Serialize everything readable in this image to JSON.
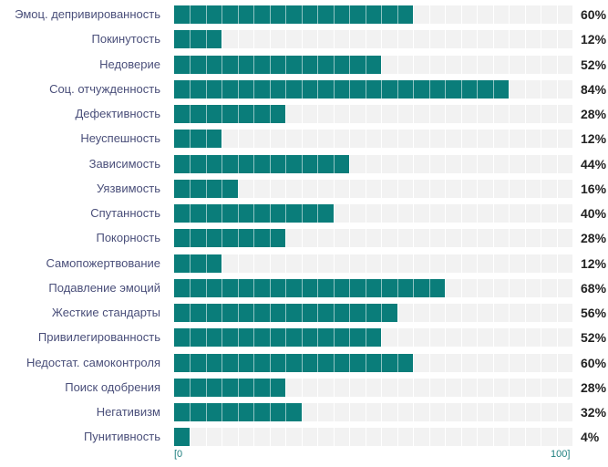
{
  "chart_data": {
    "type": "bar",
    "orientation": "horizontal",
    "categories": [
      "Эмоц. депривированность",
      "Покинутость",
      "Недоверие",
      "Соц. отчужденность",
      "Дефективность",
      "Неуспешность",
      "Зависимость",
      "Уязвимость",
      "Спутанность",
      "Покорность",
      "Самопожертвование",
      "Подавление эмоций",
      "Жесткие стандарты",
      "Привилегированность",
      "Недостат. самоконтроля",
      "Поиск одобрения",
      "Негативизм",
      "Пунитивность"
    ],
    "values": [
      60,
      12,
      52,
      84,
      28,
      12,
      44,
      16,
      40,
      28,
      12,
      68,
      56,
      52,
      60,
      28,
      32,
      4
    ],
    "value_labels": [
      "60%",
      "12%",
      "52%",
      "84%",
      "28%",
      "12%",
      "44%",
      "16%",
      "40%",
      "28%",
      "12%",
      "68%",
      "56%",
      "52%",
      "60%",
      "28%",
      "32%",
      "4%"
    ],
    "xlim": [
      0,
      100
    ],
    "tick_labels": [
      "[0",
      "100]"
    ],
    "grid": true,
    "segment_step": 4,
    "legend": "none",
    "colors": {
      "bar": "#0a7d7a",
      "track": "#f2f2f2",
      "label": "#4a4f7a",
      "value": "#222222",
      "axis": "#1f7f7f"
    }
  }
}
